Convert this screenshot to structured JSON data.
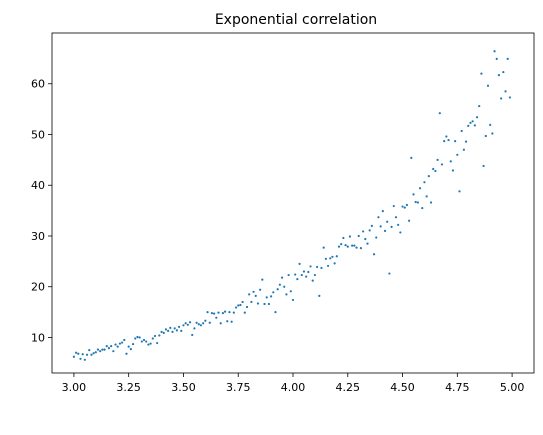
{
  "chart_data": {
    "type": "scatter",
    "title": "Exponential correlation",
    "xlabel": "",
    "ylabel": "",
    "xlim": [
      2.9,
      5.1
    ],
    "ylim": [
      3,
      70
    ],
    "x_ticks": [
      3.0,
      3.25,
      3.5,
      3.75,
      4.0,
      4.25,
      4.5,
      4.75,
      5.0
    ],
    "x_tick_labels": [
      "3.00",
      "3.25",
      "3.50",
      "3.75",
      "4.00",
      "4.25",
      "4.50",
      "4.75",
      "5.00"
    ],
    "y_ticks": [
      10,
      20,
      30,
      40,
      50,
      60
    ],
    "y_tick_labels": [
      "10",
      "20",
      "30",
      "40",
      "50",
      "60"
    ],
    "grid": false,
    "legend": "none",
    "marker_color": "#1f77b4",
    "series": [
      {
        "points": [
          [
            3.0,
            6.2
          ],
          [
            3.01,
            7.0
          ],
          [
            3.02,
            6.8
          ],
          [
            3.03,
            5.8
          ],
          [
            3.04,
            6.7
          ],
          [
            3.05,
            5.6
          ],
          [
            3.06,
            6.6
          ],
          [
            3.07,
            7.5
          ],
          [
            3.08,
            6.6
          ],
          [
            3.09,
            6.9
          ],
          [
            3.1,
            7.1
          ],
          [
            3.11,
            7.6
          ],
          [
            3.12,
            7.3
          ],
          [
            3.13,
            7.6
          ],
          [
            3.14,
            7.6
          ],
          [
            3.15,
            8.3
          ],
          [
            3.16,
            7.9
          ],
          [
            3.17,
            8.3
          ],
          [
            3.18,
            7.3
          ],
          [
            3.19,
            8.6
          ],
          [
            3.2,
            8.2
          ],
          [
            3.21,
            8.8
          ],
          [
            3.22,
            9.0
          ],
          [
            3.23,
            9.5
          ],
          [
            3.24,
            6.8
          ],
          [
            3.25,
            8.2
          ],
          [
            3.26,
            7.7
          ],
          [
            3.27,
            8.7
          ],
          [
            3.28,
            9.8
          ],
          [
            3.29,
            10.1
          ],
          [
            3.3,
            10.0
          ],
          [
            3.31,
            9.2
          ],
          [
            3.32,
            9.5
          ],
          [
            3.33,
            9.2
          ],
          [
            3.34,
            8.6
          ],
          [
            3.35,
            8.8
          ],
          [
            3.36,
            9.8
          ],
          [
            3.37,
            10.3
          ],
          [
            3.38,
            8.9
          ],
          [
            3.39,
            10.4
          ],
          [
            3.4,
            11.1
          ],
          [
            3.41,
            10.9
          ],
          [
            3.42,
            11.6
          ],
          [
            3.43,
            11.3
          ],
          [
            3.44,
            11.9
          ],
          [
            3.45,
            11.1
          ],
          [
            3.46,
            11.8
          ],
          [
            3.47,
            11.4
          ],
          [
            3.48,
            12.1
          ],
          [
            3.49,
            11.3
          ],
          [
            3.5,
            12.4
          ],
          [
            3.51,
            12.8
          ],
          [
            3.52,
            12.5
          ],
          [
            3.53,
            13.0
          ],
          [
            3.54,
            10.5
          ],
          [
            3.55,
            11.8
          ],
          [
            3.56,
            12.9
          ],
          [
            3.57,
            12.6
          ],
          [
            3.58,
            12.4
          ],
          [
            3.59,
            12.8
          ],
          [
            3.6,
            13.3
          ],
          [
            3.61,
            15.0
          ],
          [
            3.62,
            12.9
          ],
          [
            3.63,
            14.8
          ],
          [
            3.64,
            14.7
          ],
          [
            3.65,
            13.9
          ],
          [
            3.66,
            14.9
          ],
          [
            3.67,
            12.8
          ],
          [
            3.68,
            14.8
          ],
          [
            3.69,
            15.1
          ],
          [
            3.7,
            13.2
          ],
          [
            3.71,
            15.0
          ],
          [
            3.72,
            13.1
          ],
          [
            3.73,
            14.9
          ],
          [
            3.74,
            15.9
          ],
          [
            3.75,
            16.3
          ],
          [
            3.76,
            16.4
          ],
          [
            3.77,
            17.0
          ],
          [
            3.78,
            14.9
          ],
          [
            3.79,
            16.0
          ],
          [
            3.8,
            18.5
          ],
          [
            3.81,
            17.0
          ],
          [
            3.82,
            19.0
          ],
          [
            3.83,
            18.2
          ],
          [
            3.84,
            16.7
          ],
          [
            3.85,
            19.4
          ],
          [
            3.86,
            21.4
          ],
          [
            3.87,
            16.6
          ],
          [
            3.88,
            17.9
          ],
          [
            3.89,
            16.6
          ],
          [
            3.9,
            18.1
          ],
          [
            3.91,
            18.9
          ],
          [
            3.92,
            15.0
          ],
          [
            3.93,
            19.5
          ],
          [
            3.94,
            20.4
          ],
          [
            3.95,
            21.8
          ],
          [
            3.96,
            20.0
          ],
          [
            3.97,
            18.5
          ],
          [
            3.98,
            22.3
          ],
          [
            3.99,
            19.1
          ],
          [
            4.0,
            17.4
          ],
          [
            4.01,
            22.4
          ],
          [
            4.02,
            21.5
          ],
          [
            4.03,
            24.5
          ],
          [
            4.04,
            22.3
          ],
          [
            4.05,
            23.0
          ],
          [
            4.06,
            22.0
          ],
          [
            4.07,
            22.9
          ],
          [
            4.08,
            24.0
          ],
          [
            4.09,
            21.2
          ],
          [
            4.1,
            22.3
          ],
          [
            4.11,
            23.9
          ],
          [
            4.12,
            18.2
          ],
          [
            4.13,
            23.7
          ],
          [
            4.14,
            27.7
          ],
          [
            4.15,
            25.5
          ],
          [
            4.16,
            24.1
          ],
          [
            4.17,
            25.6
          ],
          [
            4.18,
            25.9
          ],
          [
            4.19,
            24.6
          ],
          [
            4.2,
            26.0
          ],
          [
            4.21,
            27.9
          ],
          [
            4.22,
            28.4
          ],
          [
            4.23,
            29.6
          ],
          [
            4.24,
            28.2
          ],
          [
            4.25,
            27.9
          ],
          [
            4.26,
            29.9
          ],
          [
            4.27,
            28.1
          ],
          [
            4.28,
            28.1
          ],
          [
            4.29,
            27.7
          ],
          [
            4.3,
            30.0
          ],
          [
            4.31,
            27.6
          ],
          [
            4.32,
            30.9
          ],
          [
            4.33,
            29.4
          ],
          [
            4.34,
            28.5
          ],
          [
            4.35,
            31.1
          ],
          [
            4.36,
            32.0
          ],
          [
            4.37,
            26.4
          ],
          [
            4.38,
            29.7
          ],
          [
            4.39,
            33.7
          ],
          [
            4.4,
            31.9
          ],
          [
            4.41,
            34.9
          ],
          [
            4.42,
            31.0
          ],
          [
            4.43,
            32.8
          ],
          [
            4.44,
            22.6
          ],
          [
            4.45,
            31.8
          ],
          [
            4.46,
            35.9
          ],
          [
            4.47,
            33.7
          ],
          [
            4.48,
            32.2
          ],
          [
            4.49,
            30.7
          ],
          [
            4.5,
            35.8
          ],
          [
            4.51,
            35.6
          ],
          [
            4.52,
            36.1
          ],
          [
            4.53,
            33.0
          ],
          [
            4.54,
            45.4
          ],
          [
            4.55,
            38.2
          ],
          [
            4.56,
            36.7
          ],
          [
            4.57,
            36.6
          ],
          [
            4.58,
            39.4
          ],
          [
            4.59,
            35.5
          ],
          [
            4.6,
            40.6
          ],
          [
            4.61,
            37.8
          ],
          [
            4.62,
            41.8
          ],
          [
            4.63,
            36.6
          ],
          [
            4.64,
            43.2
          ],
          [
            4.65,
            42.8
          ],
          [
            4.66,
            45.0
          ],
          [
            4.67,
            54.2
          ],
          [
            4.68,
            44.1
          ],
          [
            4.69,
            48.7
          ],
          [
            4.7,
            49.6
          ],
          [
            4.71,
            48.9
          ],
          [
            4.72,
            44.7
          ],
          [
            4.73,
            42.9
          ],
          [
            4.74,
            48.7
          ],
          [
            4.75,
            46.0
          ],
          [
            4.76,
            38.8
          ],
          [
            4.77,
            50.7
          ],
          [
            4.78,
            47.0
          ],
          [
            4.79,
            48.6
          ],
          [
            4.8,
            51.7
          ],
          [
            4.81,
            52.3
          ],
          [
            4.82,
            52.6
          ],
          [
            4.83,
            51.8
          ],
          [
            4.84,
            53.4
          ],
          [
            4.85,
            55.6
          ],
          [
            4.86,
            62.0
          ],
          [
            4.87,
            43.8
          ],
          [
            4.88,
            49.7
          ],
          [
            4.89,
            59.6
          ],
          [
            4.9,
            51.9
          ],
          [
            4.91,
            50.2
          ],
          [
            4.92,
            66.4
          ],
          [
            4.93,
            64.9
          ],
          [
            4.94,
            61.7
          ],
          [
            4.95,
            57.1
          ],
          [
            4.96,
            62.3
          ],
          [
            4.97,
            58.5
          ],
          [
            4.98,
            64.9
          ],
          [
            4.99,
            57.3
          ]
        ]
      }
    ]
  }
}
